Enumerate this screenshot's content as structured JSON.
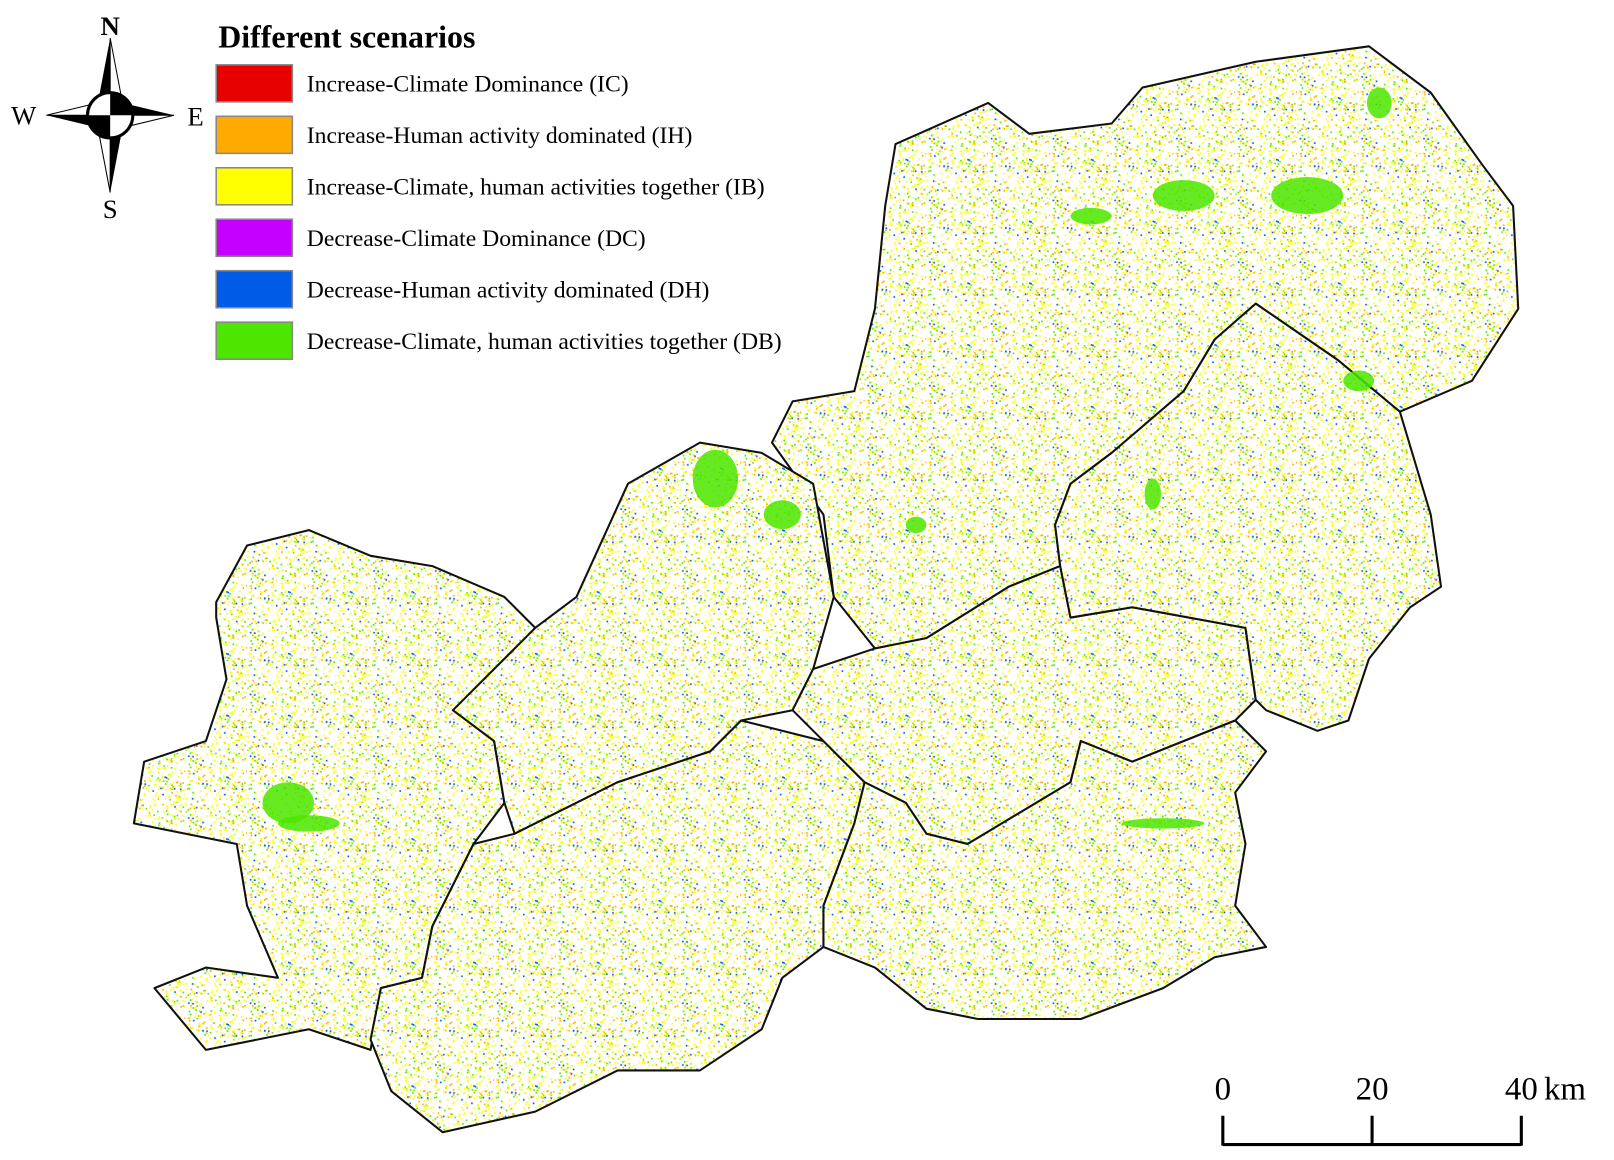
{
  "compass": {
    "north": "N",
    "west": "W",
    "east": "E",
    "south": "S"
  },
  "legend": {
    "title": "Different scenarios",
    "items": [
      {
        "label": "Increase-Climate Dominance (IC)",
        "color": "#e60000"
      },
      {
        "label": "Increase-Human activity dominated (IH)",
        "color": "#ffaa00"
      },
      {
        "label": "Increase-Climate, human activities together (IB)",
        "color": "#ffff00"
      },
      {
        "label": "Decrease-Climate Dominance (DC)",
        "color": "#c500ff"
      },
      {
        "label": "Decrease-Human activity dominated (DH)",
        "color": "#005ce6"
      },
      {
        "label": "Decrease-Climate, human activities together (DB)",
        "color": "#4ce600"
      }
    ]
  },
  "scale_bar": {
    "ticks": [
      0,
      20,
      40
    ],
    "unit": "km"
  }
}
